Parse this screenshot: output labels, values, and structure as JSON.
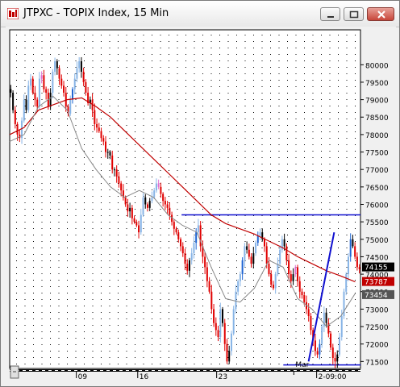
{
  "window": {
    "title": "JTPXC - TOPIX Index, 15 Min",
    "icon": "chart-icon",
    "buttons": [
      "minimize-icon",
      "maximize-icon",
      "close-icon"
    ]
  },
  "colors": {
    "background": "#ffffff",
    "grid_dots": "#000000",
    "red_candles": "#e00000",
    "black_candles": "#000000",
    "light_blue_candles": "#87b4e6",
    "dark_blue_candles": "#1e64d2",
    "pink_candles": "#e070d0",
    "ma_long": "#c00000",
    "ma_short": "#888888",
    "trend_lines": "#1010d0",
    "price_tag_black": "#000000",
    "price_tag_red": "#c00000",
    "price_tag_gray": "#555555"
  },
  "chart_data": {
    "type": "candlestick",
    "ylim": [
      7130,
      8100
    ],
    "y_ticks": [
      "80000",
      "79500",
      "79000",
      "78500",
      "78000",
      "77500",
      "77000",
      "76500",
      "76000",
      "75500",
      "75000",
      "74500",
      "74000",
      "73500",
      "73000",
      "72500",
      "72000",
      "71500"
    ],
    "x_labels": [
      "09",
      "16",
      "23",
      "Mar",
      "2-09:00"
    ],
    "price_tags": [
      {
        "label": "74155",
        "value": 7415,
        "style": "black"
      },
      {
        "label": "73787",
        "value": 7378,
        "style": "red"
      },
      {
        "label": "73454",
        "value": 7345,
        "style": "gray"
      }
    ],
    "series_closes": [
      7920,
      7870,
      7830,
      7800,
      7790,
      7840,
      7900,
      7870,
      7940,
      7960,
      7920,
      7900,
      7880,
      7960,
      7970,
      7930,
      7920,
      7880,
      7920,
      7980,
      8010,
      7990,
      7960,
      7940,
      7920,
      7880,
      7860,
      7900,
      7930,
      7960,
      7990,
      8010,
      7980,
      7950,
      7920,
      7890,
      7900,
      7870,
      7830,
      7820,
      7810,
      7790,
      7780,
      7750,
      7750,
      7740,
      7700,
      7700,
      7680,
      7660,
      7640,
      7620,
      7600,
      7580,
      7590,
      7560,
      7550,
      7540,
      7520,
      7570,
      7620,
      7600,
      7590,
      7610,
      7620,
      7640,
      7660,
      7650,
      7630,
      7610,
      7600,
      7590,
      7570,
      7550,
      7530,
      7520,
      7500,
      7480,
      7460,
      7430,
      7410,
      7440,
      7460,
      7490,
      7520,
      7540,
      7480,
      7450,
      7420,
      7380,
      7350,
      7300,
      7260,
      7240,
      7220,
      7300,
      7260,
      7200,
      7150,
      7180,
      7230,
      7300,
      7350,
      7380,
      7400,
      7440,
      7480,
      7470,
      7450,
      7430,
      7460,
      7490,
      7510,
      7520,
      7500,
      7480,
      7430,
      7400,
      7370,
      7360,
      7400,
      7430,
      7470,
      7500,
      7480,
      7440,
      7400,
      7380,
      7400,
      7420,
      7380,
      7350,
      7340,
      7320,
      7300,
      7280,
      7240,
      7210,
      7180,
      7170,
      7200,
      7250,
      7290,
      7260,
      7230,
      7190,
      7160,
      7150,
      7170,
      7220,
      7280,
      7350,
      7400,
      7450,
      7500,
      7480,
      7450,
      7420,
      7415
    ],
    "ma_long": [
      7800,
      7820,
      7870,
      7885,
      7900,
      7905,
      7880,
      7850,
      7810,
      7770,
      7730,
      7690,
      7650,
      7610,
      7570,
      7545,
      7530,
      7515,
      7495,
      7475,
      7450,
      7430,
      7410,
      7395,
      7378
    ],
    "ma_short": [
      7780,
      7800,
      7880,
      7910,
      7870,
      7760,
      7700,
      7650,
      7620,
      7640,
      7620,
      7570,
      7540,
      7520,
      7420,
      7330,
      7320,
      7360,
      7440,
      7420,
      7330,
      7300,
      7250,
      7280,
      7345
    ],
    "horizontal_lines": [
      7570,
      7140
    ],
    "trend_line": {
      "from": [
        0.852,
        7150
      ],
      "to": [
        0.925,
        7520
      ]
    }
  }
}
